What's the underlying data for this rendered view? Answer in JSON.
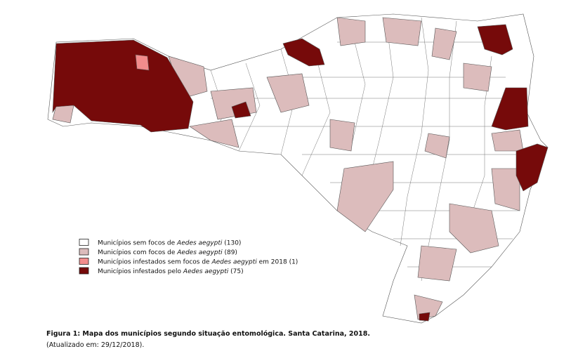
{
  "legend": [
    {
      "color": "#ffffff",
      "text": "Municípios sem focos de ",
      "species": "Aedes aegypti",
      "count": " (130)"
    },
    {
      "color": "#dcbcbc",
      "text": "Municípios com focos de ",
      "species": "Aedes aegypti",
      "count": " (89)"
    },
    {
      "color": "#f28c8c",
      "text": "Municípios infestados sem focos de ",
      "species": "Aedes aegypti",
      "count": " em 2018 (1)"
    },
    {
      "color": "#760a0a",
      "text": "Municípios infestados pelo ",
      "species": "Aedes aegypti",
      "count": " (75)"
    }
  ],
  "caption": {
    "title": "Figura 1: Mapa dos municípios segundo situação entomológica. Santa Catarina, 2018.",
    "updated": "(Atualizado em: 29/12/2018)."
  }
}
